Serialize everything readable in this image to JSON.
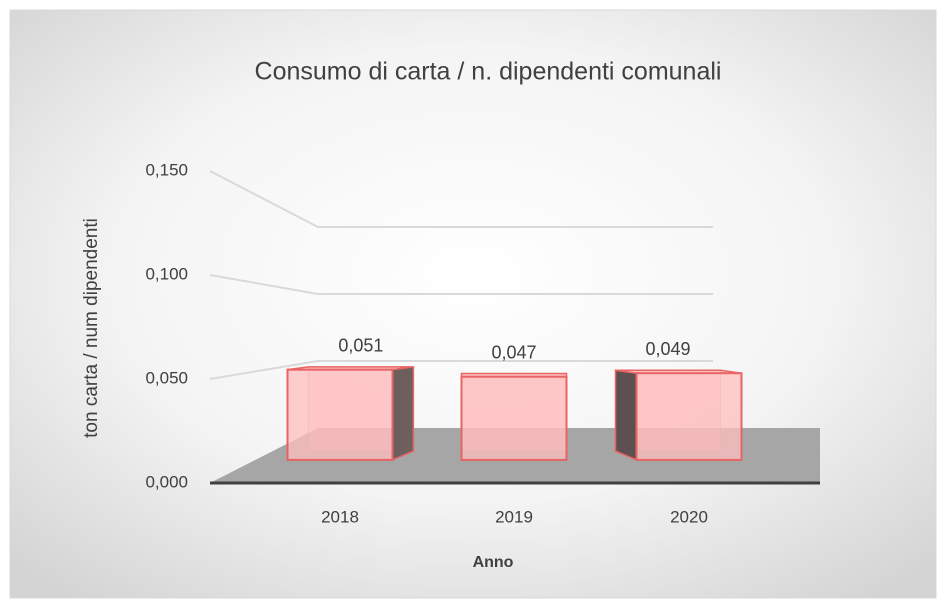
{
  "chart_data": {
    "type": "bar3d",
    "title": "Consumo di carta /  n. dipendenti comunali",
    "y_label": "ton  carta / num dipendenti",
    "x_label": "Anno",
    "categories": [
      "2018",
      "2019",
      "2020"
    ],
    "values": [
      0.051,
      0.047,
      0.049
    ],
    "value_labels": [
      "0,051",
      "0,047",
      "0,049"
    ],
    "color": "#e86464",
    "ylim": [
      0,
      0.15
    ],
    "yticks": [
      {
        "value": 0,
        "label": "0,000"
      },
      {
        "value": 0.05,
        "label": "0,050"
      },
      {
        "value": 0.1,
        "label": "0,100"
      },
      {
        "value": 0.15,
        "label": "0,150"
      }
    ],
    "grid": true
  }
}
